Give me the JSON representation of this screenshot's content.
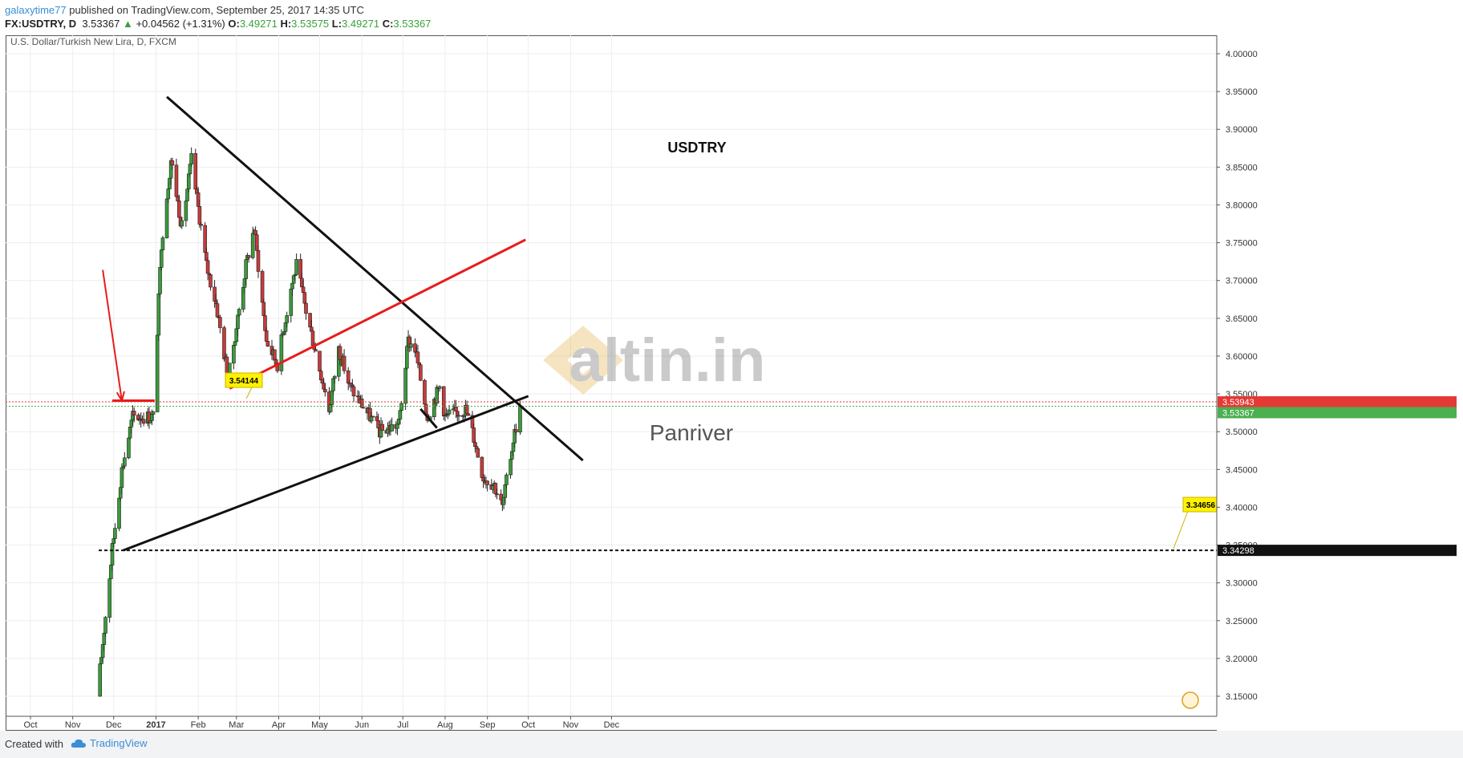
{
  "header": {
    "user": "galaxytime77",
    "published": "published on TradingView.com, September 25, 2017 14:35 UTC",
    "symbol": "FX:USDTRY, D",
    "last": "3.53367",
    "change": "+0.04562 (+1.31%)",
    "o_label": "O:",
    "o_value": "3.49271",
    "h_label": "H:",
    "h_value": "3.53575",
    "l_label": "L:",
    "l_value": "3.49271",
    "c_label": "C:",
    "c_value": "3.53367"
  },
  "footer": {
    "created": "Created with",
    "brand": "TradingView",
    "brand_icon": "tradingview-cloud-icon"
  },
  "colors": {
    "up": "#3b9a3b",
    "down": "#c63b3b",
    "red_line": "#e81c1c",
    "trend": "#111111",
    "label_yellow": "#fff200"
  },
  "chart_data": {
    "type": "candlestick",
    "title": "U.S. Dollar/Turkish New Lira, D, FXCM",
    "annotation": "USDTRY",
    "watermark": {
      "brand": "altin.in",
      "sub": "Panriver"
    },
    "x_ticks": [
      "Oct",
      "Nov",
      "Dec",
      "2017",
      "Feb",
      "Mar",
      "Apr",
      "May",
      "Jun",
      "Jul",
      "Aug",
      "Sep",
      "Oct",
      "Nov",
      "Dec"
    ],
    "y_ticks": [
      "4.00000",
      "3.95000",
      "3.90000",
      "3.85000",
      "3.80000",
      "3.75000",
      "3.70000",
      "3.65000",
      "3.60000",
      "3.55000",
      "3.50000",
      "3.45000",
      "3.40000",
      "3.35000",
      "3.30000",
      "3.25000",
      "3.20000",
      "3.15000"
    ],
    "ylim": [
      3.15,
      4.0
    ],
    "grid": true,
    "price_labels": [
      {
        "value": "3.53943",
        "color": "#e53935"
      },
      {
        "value": "3.53367",
        "color": "#4caf50"
      },
      {
        "value": "3.34298",
        "color": "#111111"
      }
    ],
    "callouts": [
      {
        "text": "3.54144",
        "date": "2016-12-10",
        "price": 3.54144
      },
      {
        "text": "3.34656",
        "date": "2017-11-20",
        "price": 3.34656
      }
    ],
    "lines": [
      {
        "name": "descending-trendline",
        "color": "#111111",
        "from": [
          "2017-01-09",
          3.943
        ],
        "to": [
          "2017-11-10",
          3.462
        ]
      },
      {
        "name": "ascending-trendline",
        "color": "#111111",
        "from": [
          "2016-12-08",
          3.343
        ],
        "to": [
          "2017-10-01",
          3.547
        ]
      },
      {
        "name": "red-channel-line",
        "color": "#e81c1c",
        "from": [
          "2017-02-24",
          3.557
        ],
        "to": [
          "2017-09-29",
          3.754
        ]
      },
      {
        "name": "red-resistance-line",
        "color": "#e81c1c",
        "from": [
          "2016-11-30",
          3.541
        ],
        "to": [
          "2016-12-31",
          3.541
        ]
      },
      {
        "name": "short-black-segment",
        "color": "#111111",
        "from": [
          "2017-07-14",
          3.53
        ],
        "to": [
          "2017-07-26",
          3.505
        ]
      },
      {
        "name": "support-dotted-line",
        "color": "#111111",
        "dash": true,
        "from": [
          "2016-11-20",
          3.343
        ],
        "to": [
          "2017-12-31",
          3.343
        ]
      }
    ],
    "arrow": {
      "color": "#e81c1c",
      "from": [
        "2016-11-23",
        3.714
      ],
      "to": [
        "2016-12-07",
        3.541
      ]
    },
    "anchors": [
      [
        "2016-11-19",
        3.15
      ],
      [
        "2016-11-30",
        3.345
      ],
      [
        "2016-12-07",
        3.45
      ],
      [
        "2016-12-15",
        3.52
      ],
      [
        "2016-12-30",
        3.52
      ],
      [
        "2017-01-05",
        3.75
      ],
      [
        "2017-01-12",
        3.86
      ],
      [
        "2017-01-20",
        3.77
      ],
      [
        "2017-01-27",
        3.86
      ],
      [
        "2017-02-07",
        3.72
      ],
      [
        "2017-02-14",
        3.67
      ],
      [
        "2017-02-23",
        3.57
      ],
      [
        "2017-03-08",
        3.72
      ],
      [
        "2017-03-14",
        3.77
      ],
      [
        "2017-03-23",
        3.62
      ],
      [
        "2017-03-31",
        3.59
      ],
      [
        "2017-04-10",
        3.69
      ],
      [
        "2017-04-14",
        3.72
      ],
      [
        "2017-04-21",
        3.66
      ],
      [
        "2017-04-25",
        3.63
      ],
      [
        "2017-05-08",
        3.53
      ],
      [
        "2017-05-15",
        3.61
      ],
      [
        "2017-05-23",
        3.56
      ],
      [
        "2017-06-07",
        3.52
      ],
      [
        "2017-06-14",
        3.5
      ],
      [
        "2017-06-28",
        3.51
      ],
      [
        "2017-07-05",
        3.62
      ],
      [
        "2017-07-10",
        3.61
      ],
      [
        "2017-07-19",
        3.52
      ],
      [
        "2017-07-28",
        3.56
      ],
      [
        "2017-08-01",
        3.52
      ],
      [
        "2017-08-16",
        3.53
      ],
      [
        "2017-08-21",
        3.5
      ],
      [
        "2017-08-29",
        3.44
      ],
      [
        "2017-09-06",
        3.43
      ],
      [
        "2017-09-12",
        3.4
      ],
      [
        "2017-09-20",
        3.49
      ],
      [
        "2017-09-25",
        3.5337
      ]
    ]
  }
}
